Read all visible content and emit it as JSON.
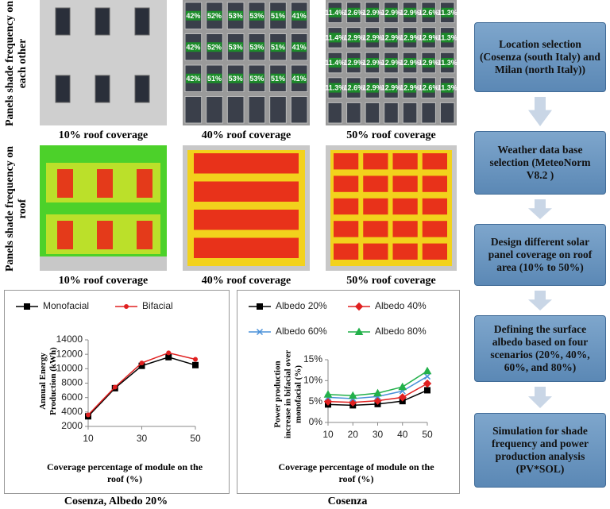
{
  "row_labels": [
    "Panels shade frequency on each other",
    "Panels shade frequency on roof"
  ],
  "images": [
    {
      "caption": "10% roof coverage"
    },
    {
      "caption": "40% roof coverage",
      "panel_labels": [
        [
          "42%",
          "52%",
          "53%",
          "53%",
          "51%",
          "41%"
        ],
        [
          "42%",
          "52%",
          "53%",
          "53%",
          "51%",
          "41%"
        ],
        [
          "42%",
          "51%",
          "53%",
          "53%",
          "51%",
          "41%"
        ]
      ]
    },
    {
      "caption": "50% roof coverage",
      "panel_labels": [
        [
          "11.4%",
          "12.6%",
          "12.9%",
          "12.9%",
          "12.9%",
          "12.6%",
          "11.3%"
        ],
        [
          "11.4%",
          "12.9%",
          "12.9%",
          "12.9%",
          "12.9%",
          "12.9%",
          "11.3%"
        ],
        [
          "11.4%",
          "12.9%",
          "12.9%",
          "12.9%",
          "12.9%",
          "12.9%",
          "11.3%"
        ],
        [
          "11.3%",
          "12.6%",
          "12.9%",
          "12.9%",
          "12.9%",
          "12.6%",
          "11.3%"
        ]
      ]
    },
    {
      "caption": "10% roof coverage"
    },
    {
      "caption": "40% roof coverage"
    },
    {
      "caption": "50% roof coverage"
    }
  ],
  "chart_data": [
    {
      "type": "line",
      "caption": "Cosenza, Albedo 20%",
      "y_label": "Annual Energy Production (kWh)",
      "x_label": "Coverage percentage of module on the roof (%)",
      "x": [
        10,
        20,
        30,
        40,
        50
      ],
      "xlim": [
        10,
        50
      ],
      "xticks": [
        10,
        30,
        50
      ],
      "ylim": [
        2000,
        14000
      ],
      "yticks": [
        2000,
        4000,
        6000,
        8000,
        10000,
        12000,
        14000
      ],
      "series": [
        {
          "name": "Monofacial",
          "color": "#000000",
          "marker": "square",
          "values": [
            3400,
            7300,
            10400,
            11600,
            10500
          ]
        },
        {
          "name": "Bifacial",
          "color": "#e02020",
          "marker": "circle",
          "values": [
            3600,
            7450,
            10800,
            12200,
            11300
          ]
        }
      ]
    },
    {
      "type": "line",
      "caption": "Cosenza",
      "y_label": "Power production increase in bifacial over monofacial (%)",
      "x_label": "Coverage percentage of module on the roof (%)",
      "x": [
        10,
        20,
        30,
        40,
        50
      ],
      "xlim": [
        10,
        50
      ],
      "xticks": [
        10,
        20,
        30,
        40,
        50
      ],
      "ylim": [
        0,
        15
      ],
      "yticks": [
        {
          "value": 0,
          "label": "0%"
        },
        {
          "value": 5,
          "label": "5%"
        },
        {
          "value": 10,
          "label": "10%"
        },
        {
          "value": 15,
          "label": "15%"
        }
      ],
      "series": [
        {
          "name": "Albedo 20%",
          "color": "#000000",
          "marker": "square",
          "values": [
            4.3,
            4.1,
            4.4,
            5.1,
            7.7
          ]
        },
        {
          "name": "Albedo 40%",
          "color": "#e02020",
          "marker": "diamond",
          "values": [
            5.0,
            4.8,
            5.2,
            6.0,
            9.3
          ]
        },
        {
          "name": "Albedo 60%",
          "color": "#4a90d9",
          "marker": "x",
          "values": [
            6.0,
            5.7,
            6.2,
            7.5,
            11.0
          ]
        },
        {
          "name": "Albedo 80%",
          "color": "#22b04a",
          "marker": "triangle",
          "values": [
            6.7,
            6.4,
            7.0,
            8.5,
            12.3
          ]
        }
      ]
    }
  ],
  "flowchart": {
    "steps": [
      "Location selection (Cosenza (south Italy) and Milan (north Italy))",
      "Weather data base selection (MeteoNorm V8.2 )",
      "Design different solar panel coverage on roof area (10% to 50%)",
      "Defining the surface albedo based on four scenarios (20%, 40%, 60%, and 80%)",
      "Simulation for shade frequency  and power production analysis (PV*SOL)"
    ]
  }
}
